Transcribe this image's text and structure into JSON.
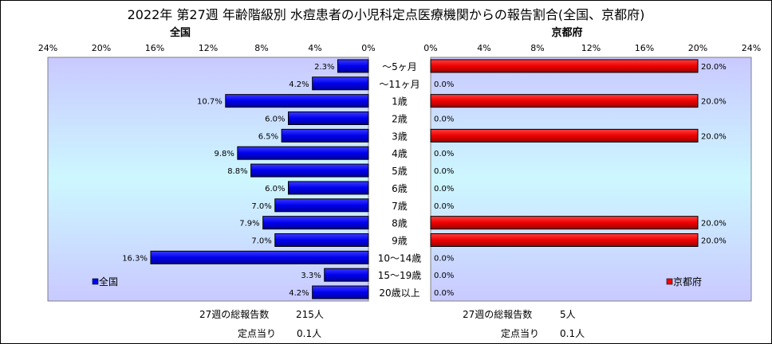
{
  "title": "2022年 第27週 年齢階級別 水痘患者の小児科定点医療機関からの報告割合(全国、京都府)",
  "chart_data": [
    {
      "type": "bar",
      "orientation": "horizontal",
      "direction": "right-to-left",
      "title": "全国",
      "legend": "全国",
      "legend_position": "bottom-left",
      "bar_color": "#0000ff",
      "xlim": [
        0,
        24
      ],
      "tick_labels": [
        "24%",
        "20%",
        "16%",
        "12%",
        "8%",
        "4%",
        "0%"
      ],
      "categories": [
        "～5ヶ月",
        "～11ヶ月",
        "1歳",
        "2歳",
        "3歳",
        "4歳",
        "5歳",
        "6歳",
        "7歳",
        "8歳",
        "9歳",
        "10～14歳",
        "15～19歳",
        "20歳以上"
      ],
      "values": [
        2.3,
        4.2,
        10.7,
        6.0,
        6.5,
        9.8,
        8.8,
        6.0,
        7.0,
        7.9,
        7.0,
        16.3,
        3.3,
        4.2
      ],
      "labels": [
        "2.3%",
        "4.2%",
        "10.7%",
        "6.0%",
        "6.5%",
        "9.8%",
        "8.8%",
        "6.0%",
        "7.0%",
        "7.9%",
        "7.0%",
        "16.3%",
        "3.3%",
        "4.2%"
      ]
    },
    {
      "type": "bar",
      "orientation": "horizontal",
      "direction": "left-to-right",
      "title": "京都府",
      "legend": "京都府",
      "legend_position": "bottom-right",
      "bar_color": "#ff0000",
      "xlim": [
        0,
        24
      ],
      "tick_labels": [
        "0%",
        "4%",
        "8%",
        "12%",
        "16%",
        "20%",
        "24%"
      ],
      "categories": [
        "～5ヶ月",
        "～11ヶ月",
        "1歳",
        "2歳",
        "3歳",
        "4歳",
        "5歳",
        "6歳",
        "7歳",
        "8歳",
        "9歳",
        "10～14歳",
        "15～19歳",
        "20歳以上"
      ],
      "values": [
        20.0,
        0.0,
        20.0,
        0.0,
        20.0,
        0.0,
        0.0,
        0.0,
        0.0,
        20.0,
        20.0,
        0.0,
        0.0,
        0.0
      ],
      "labels": [
        "20.0%",
        "0.0%",
        "20.0%",
        "0.0%",
        "20.0%",
        "0.0%",
        "0.0%",
        "0.0%",
        "0.0%",
        "20.0%",
        "20.0%",
        "0.0%",
        "0.0%",
        "0.0%"
      ]
    }
  ],
  "footer": {
    "national": {
      "total_label": "27週の総報告数",
      "total_value": "215人",
      "per_site_label": "定点当り",
      "per_site_value": "0.1人"
    },
    "kyoto": {
      "total_label": "27週の総報告数",
      "total_value": "5人",
      "per_site_label": "定点当り",
      "per_site_value": "0.1人"
    }
  }
}
